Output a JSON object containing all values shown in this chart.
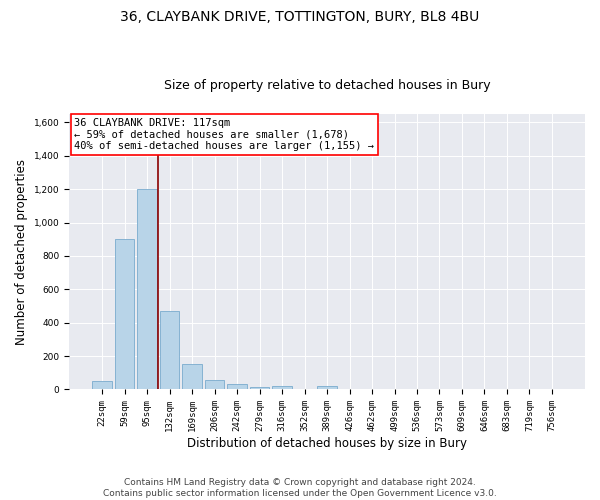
{
  "title1": "36, CLAYBANK DRIVE, TOTTINGTON, BURY, BL8 4BU",
  "title2": "Size of property relative to detached houses in Bury",
  "xlabel": "Distribution of detached houses by size in Bury",
  "ylabel": "Number of detached properties",
  "bins": [
    "22sqm",
    "59sqm",
    "95sqm",
    "132sqm",
    "169sqm",
    "206sqm",
    "242sqm",
    "279sqm",
    "316sqm",
    "352sqm",
    "389sqm",
    "426sqm",
    "462sqm",
    "499sqm",
    "536sqm",
    "573sqm",
    "609sqm",
    "646sqm",
    "683sqm",
    "719sqm",
    "756sqm"
  ],
  "values": [
    50,
    900,
    1200,
    470,
    150,
    55,
    30,
    15,
    20,
    0,
    20,
    0,
    0,
    0,
    0,
    0,
    0,
    0,
    0,
    0,
    0
  ],
  "bar_color": "#b8d4e8",
  "bar_edge_color": "#7aabce",
  "property_line_color": "#8b0000",
  "annotation_text": "36 CLAYBANK DRIVE: 117sqm\n← 59% of detached houses are smaller (1,678)\n40% of semi-detached houses are larger (1,155) →",
  "annotation_box_color": "white",
  "annotation_box_edge": "red",
  "ylim": [
    0,
    1650
  ],
  "yticks": [
    0,
    200,
    400,
    600,
    800,
    1000,
    1200,
    1400,
    1600
  ],
  "background_color": "#e8eaf0",
  "footer": "Contains HM Land Registry data © Crown copyright and database right 2024.\nContains public sector information licensed under the Open Government Licence v3.0.",
  "title1_fontsize": 10,
  "title2_fontsize": 9,
  "xlabel_fontsize": 8.5,
  "ylabel_fontsize": 8.5,
  "annotation_fontsize": 7.5,
  "footer_fontsize": 6.5,
  "tick_fontsize": 6.5
}
